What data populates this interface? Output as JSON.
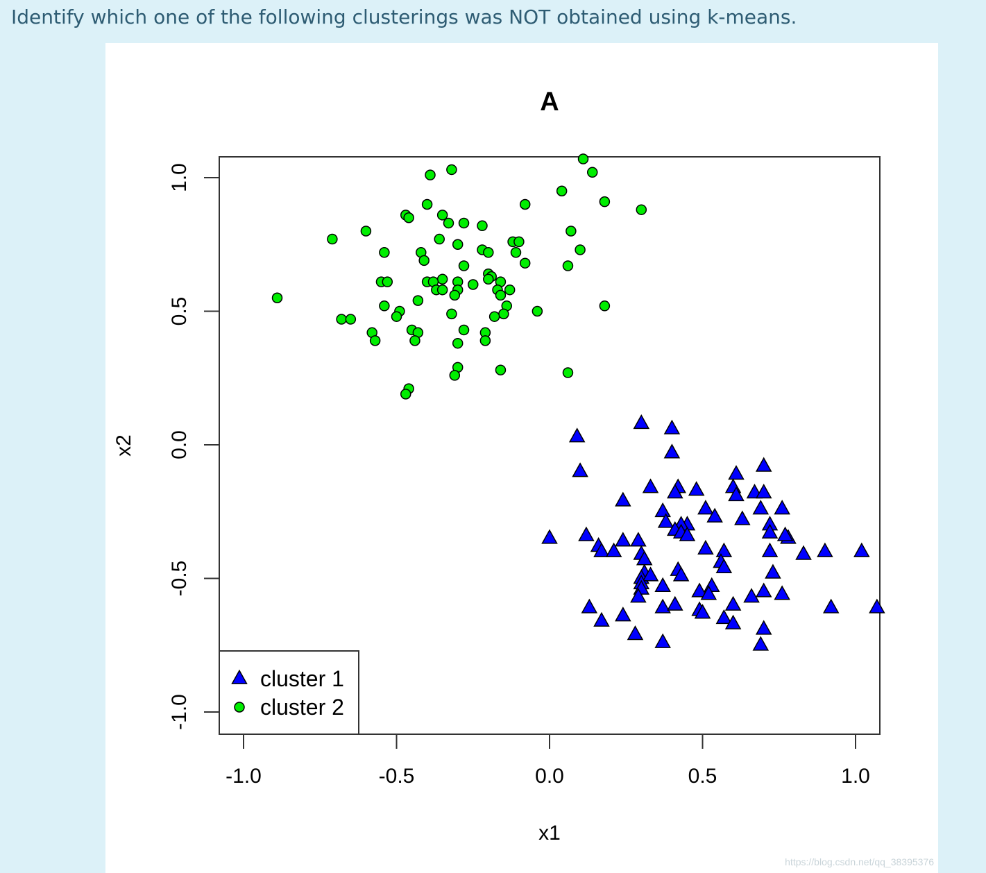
{
  "question": {
    "text": "Identify which one of the following clusterings was NOT obtained using k-means."
  },
  "watermark": "https://blog.csdn.net/qq_38395376",
  "chart_data": {
    "type": "scatter",
    "title": "A",
    "xlabel": "x1",
    "ylabel": "x2",
    "xlim": [
      -1.08,
      1.08
    ],
    "ylim": [
      -1.08,
      1.08
    ],
    "xticks": [
      -1.0,
      -0.5,
      0.0,
      0.5,
      1.0
    ],
    "xtick_labels": [
      "-1.0",
      "-0.5",
      "0.0",
      "0.5",
      "1.0"
    ],
    "yticks": [
      -1.0,
      -0.5,
      0.0,
      0.5,
      1.0
    ],
    "ytick_labels": [
      "-1.0",
      "-0.5",
      "0.0",
      "0.5",
      "1.0"
    ],
    "grid": false,
    "legend_position": "bottom-left",
    "series": [
      {
        "name": "cluster 1",
        "marker": "triangle",
        "color": "#0000ff",
        "points": [
          [
            0.3,
            0.08
          ],
          [
            0.4,
            0.06
          ],
          [
            0.09,
            0.03
          ],
          [
            0.4,
            -0.03
          ],
          [
            0.1,
            -0.1
          ],
          [
            0.7,
            -0.08
          ],
          [
            0.61,
            -0.11
          ],
          [
            0.33,
            -0.16
          ],
          [
            0.42,
            -0.16
          ],
          [
            0.48,
            -0.17
          ],
          [
            0.41,
            -0.18
          ],
          [
            0.6,
            -0.16
          ],
          [
            0.61,
            -0.19
          ],
          [
            0.67,
            -0.18
          ],
          [
            0.7,
            -0.18
          ],
          [
            0.24,
            -0.21
          ],
          [
            0.51,
            -0.24
          ],
          [
            0.37,
            -0.25
          ],
          [
            0.69,
            -0.24
          ],
          [
            0.76,
            -0.24
          ],
          [
            0.54,
            -0.27
          ],
          [
            0.63,
            -0.28
          ],
          [
            0.45,
            -0.3
          ],
          [
            0.38,
            -0.29
          ],
          [
            0.43,
            -0.3
          ],
          [
            0.72,
            -0.3
          ],
          [
            0.41,
            -0.32
          ],
          [
            0.43,
            -0.33
          ],
          [
            0.72,
            -0.33
          ],
          [
            0.45,
            -0.34
          ],
          [
            0.0,
            -0.35
          ],
          [
            0.12,
            -0.34
          ],
          [
            0.24,
            -0.36
          ],
          [
            0.29,
            -0.36
          ],
          [
            0.16,
            -0.38
          ],
          [
            0.78,
            -0.35
          ],
          [
            0.77,
            -0.34
          ],
          [
            0.17,
            -0.4
          ],
          [
            0.21,
            -0.4
          ],
          [
            0.51,
            -0.39
          ],
          [
            0.57,
            -0.4
          ],
          [
            0.72,
            -0.4
          ],
          [
            0.83,
            -0.41
          ],
          [
            0.9,
            -0.4
          ],
          [
            1.02,
            -0.4
          ],
          [
            0.3,
            -0.41
          ],
          [
            0.31,
            -0.43
          ],
          [
            0.56,
            -0.44
          ],
          [
            0.57,
            -0.46
          ],
          [
            0.31,
            -0.48
          ],
          [
            0.42,
            -0.47
          ],
          [
            0.43,
            -0.49
          ],
          [
            0.73,
            -0.48
          ],
          [
            0.3,
            -0.5
          ],
          [
            0.33,
            -0.49
          ],
          [
            0.3,
            -0.52
          ],
          [
            0.37,
            -0.53
          ],
          [
            0.53,
            -0.53
          ],
          [
            0.3,
            -0.54
          ],
          [
            0.49,
            -0.55
          ],
          [
            0.52,
            -0.56
          ],
          [
            0.7,
            -0.55
          ],
          [
            0.76,
            -0.56
          ],
          [
            0.66,
            -0.57
          ],
          [
            0.29,
            -0.57
          ],
          [
            0.13,
            -0.61
          ],
          [
            0.37,
            -0.61
          ],
          [
            0.41,
            -0.6
          ],
          [
            0.49,
            -0.62
          ],
          [
            0.5,
            -0.63
          ],
          [
            0.6,
            -0.6
          ],
          [
            0.92,
            -0.61
          ],
          [
            1.07,
            -0.61
          ],
          [
            0.24,
            -0.64
          ],
          [
            0.17,
            -0.66
          ],
          [
            0.57,
            -0.65
          ],
          [
            0.6,
            -0.67
          ],
          [
            0.7,
            -0.69
          ],
          [
            0.28,
            -0.71
          ],
          [
            0.37,
            -0.74
          ],
          [
            0.69,
            -0.75
          ]
        ]
      },
      {
        "name": "cluster 2",
        "marker": "circle",
        "color": "#00ee00",
        "points": [
          [
            0.11,
            1.07
          ],
          [
            0.14,
            1.02
          ],
          [
            -0.32,
            1.03
          ],
          [
            -0.39,
            1.01
          ],
          [
            0.04,
            0.95
          ],
          [
            0.18,
            0.91
          ],
          [
            0.3,
            0.88
          ],
          [
            -0.08,
            0.9
          ],
          [
            -0.4,
            0.9
          ],
          [
            -0.47,
            0.86
          ],
          [
            -0.46,
            0.85
          ],
          [
            -0.35,
            0.86
          ],
          [
            -0.33,
            0.83
          ],
          [
            -0.28,
            0.83
          ],
          [
            -0.22,
            0.82
          ],
          [
            -0.6,
            0.8
          ],
          [
            0.07,
            0.8
          ],
          [
            -0.71,
            0.77
          ],
          [
            -0.36,
            0.77
          ],
          [
            -0.3,
            0.75
          ],
          [
            -0.12,
            0.76
          ],
          [
            -0.1,
            0.76
          ],
          [
            -0.54,
            0.72
          ],
          [
            -0.42,
            0.72
          ],
          [
            -0.22,
            0.73
          ],
          [
            -0.2,
            0.72
          ],
          [
            -0.11,
            0.72
          ],
          [
            0.1,
            0.73
          ],
          [
            -0.41,
            0.69
          ],
          [
            -0.08,
            0.68
          ],
          [
            0.06,
            0.67
          ],
          [
            -0.28,
            0.67
          ],
          [
            -0.2,
            0.64
          ],
          [
            -0.19,
            0.63
          ],
          [
            -0.55,
            0.61
          ],
          [
            -0.53,
            0.61
          ],
          [
            -0.35,
            0.62
          ],
          [
            -0.2,
            0.62
          ],
          [
            -0.16,
            0.61
          ],
          [
            -0.4,
            0.61
          ],
          [
            -0.38,
            0.61
          ],
          [
            -0.3,
            0.61
          ],
          [
            -0.25,
            0.6
          ],
          [
            -0.37,
            0.58
          ],
          [
            -0.35,
            0.58
          ],
          [
            -0.3,
            0.58
          ],
          [
            -0.17,
            0.58
          ],
          [
            -0.13,
            0.58
          ],
          [
            -0.31,
            0.56
          ],
          [
            -0.16,
            0.56
          ],
          [
            -0.89,
            0.55
          ],
          [
            -0.43,
            0.54
          ],
          [
            -0.54,
            0.52
          ],
          [
            -0.14,
            0.52
          ],
          [
            0.18,
            0.52
          ],
          [
            -0.49,
            0.5
          ],
          [
            -0.5,
            0.48
          ],
          [
            -0.32,
            0.49
          ],
          [
            -0.15,
            0.49
          ],
          [
            -0.18,
            0.48
          ],
          [
            -0.04,
            0.5
          ],
          [
            -0.68,
            0.47
          ],
          [
            -0.65,
            0.47
          ],
          [
            -0.58,
            0.42
          ],
          [
            -0.45,
            0.43
          ],
          [
            -0.43,
            0.42
          ],
          [
            -0.28,
            0.43
          ],
          [
            -0.21,
            0.42
          ],
          [
            -0.57,
            0.39
          ],
          [
            -0.44,
            0.39
          ],
          [
            -0.3,
            0.38
          ],
          [
            -0.21,
            0.39
          ],
          [
            -0.3,
            0.29
          ],
          [
            -0.16,
            0.28
          ],
          [
            0.06,
            0.27
          ],
          [
            -0.31,
            0.26
          ],
          [
            -0.46,
            0.21
          ],
          [
            -0.47,
            0.19
          ]
        ]
      }
    ]
  }
}
